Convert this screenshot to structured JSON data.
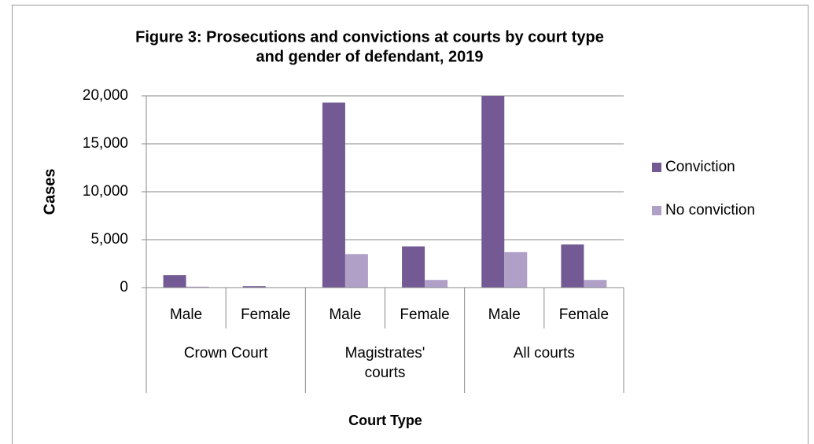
{
  "chart_data": {
    "type": "bar",
    "title": [
      "Figure 3: Prosecutions and convictions at courts by court type",
      "and gender of defendant, 2019"
    ],
    "ylabel": "Cases",
    "xlabel": "Court Type",
    "categories": [
      "Male",
      "Female",
      "Male",
      "Female",
      "Male",
      "Female"
    ],
    "groups": [
      "Crown Court",
      "Magistrates' courts",
      "All courts"
    ],
    "series": [
      {
        "name": "Conviction",
        "color": "#735a94",
        "values": [
          1300,
          150,
          19300,
          4300,
          20000,
          4500
        ]
      },
      {
        "name": "No conviction",
        "color": "#b0a0c8",
        "values": [
          100,
          20,
          3500,
          800,
          3700,
          800
        ]
      }
    ],
    "ylim": [
      0,
      20000
    ],
    "yticks": [
      0,
      {
        "value": 5000,
        "label": "5,000"
      },
      {
        "value": 10000,
        "label": "10,000"
      },
      {
        "value": 15000,
        "label": "15,000"
      },
      {
        "value": 20000,
        "label": "20,000"
      }
    ],
    "grid": true,
    "legend": "right"
  }
}
